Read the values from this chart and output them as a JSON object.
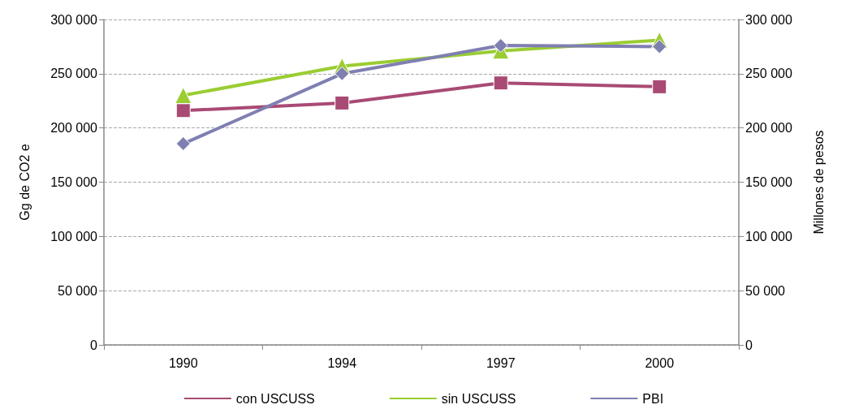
{
  "chart_data": {
    "type": "line",
    "ylabel": "Gg de CO2 e",
    "y2label": "Millones de pesos",
    "categories": [
      "1990",
      "1994",
      "1997",
      "2000"
    ],
    "series": [
      {
        "name": "con USCUSS",
        "color": "#a94a74",
        "marker": "square",
        "values": [
          216000,
          223000,
          241500,
          238000
        ]
      },
      {
        "name": "sin USCUSS",
        "color": "#9acd32",
        "marker": "triangle",
        "values": [
          230000,
          257000,
          271000,
          281000
        ]
      },
      {
        "name": "PBI",
        "color": "#7f7fb2",
        "marker": "diamond",
        "axis": "y2",
        "values": [
          185500,
          250000,
          276000,
          275000
        ]
      }
    ],
    "ylim": [
      0,
      300000
    ],
    "yticks": [
      {
        "value": 0,
        "label": "0"
      },
      {
        "value": 50000,
        "label": "50 000"
      },
      {
        "value": 100000,
        "label": "100 000"
      },
      {
        "value": 150000,
        "label": "150 000"
      },
      {
        "value": 200000,
        "label": "200 000"
      },
      {
        "value": 250000,
        "label": "250 000"
      },
      {
        "value": 300000,
        "label": "300 000"
      }
    ],
    "y2lim": [
      0,
      300000
    ],
    "y2ticks": [
      {
        "value": 0,
        "label": "0"
      },
      {
        "value": 50000,
        "label": "50 000"
      },
      {
        "value": 100000,
        "label": "100 000"
      },
      {
        "value": 150000,
        "label": "150 000"
      },
      {
        "value": 200000,
        "label": "200 000"
      },
      {
        "value": 250000,
        "label": "250 000"
      },
      {
        "value": 300000,
        "label": "300 000"
      }
    ],
    "grid": "y",
    "legend": "bottom",
    "line_style": "solid"
  }
}
